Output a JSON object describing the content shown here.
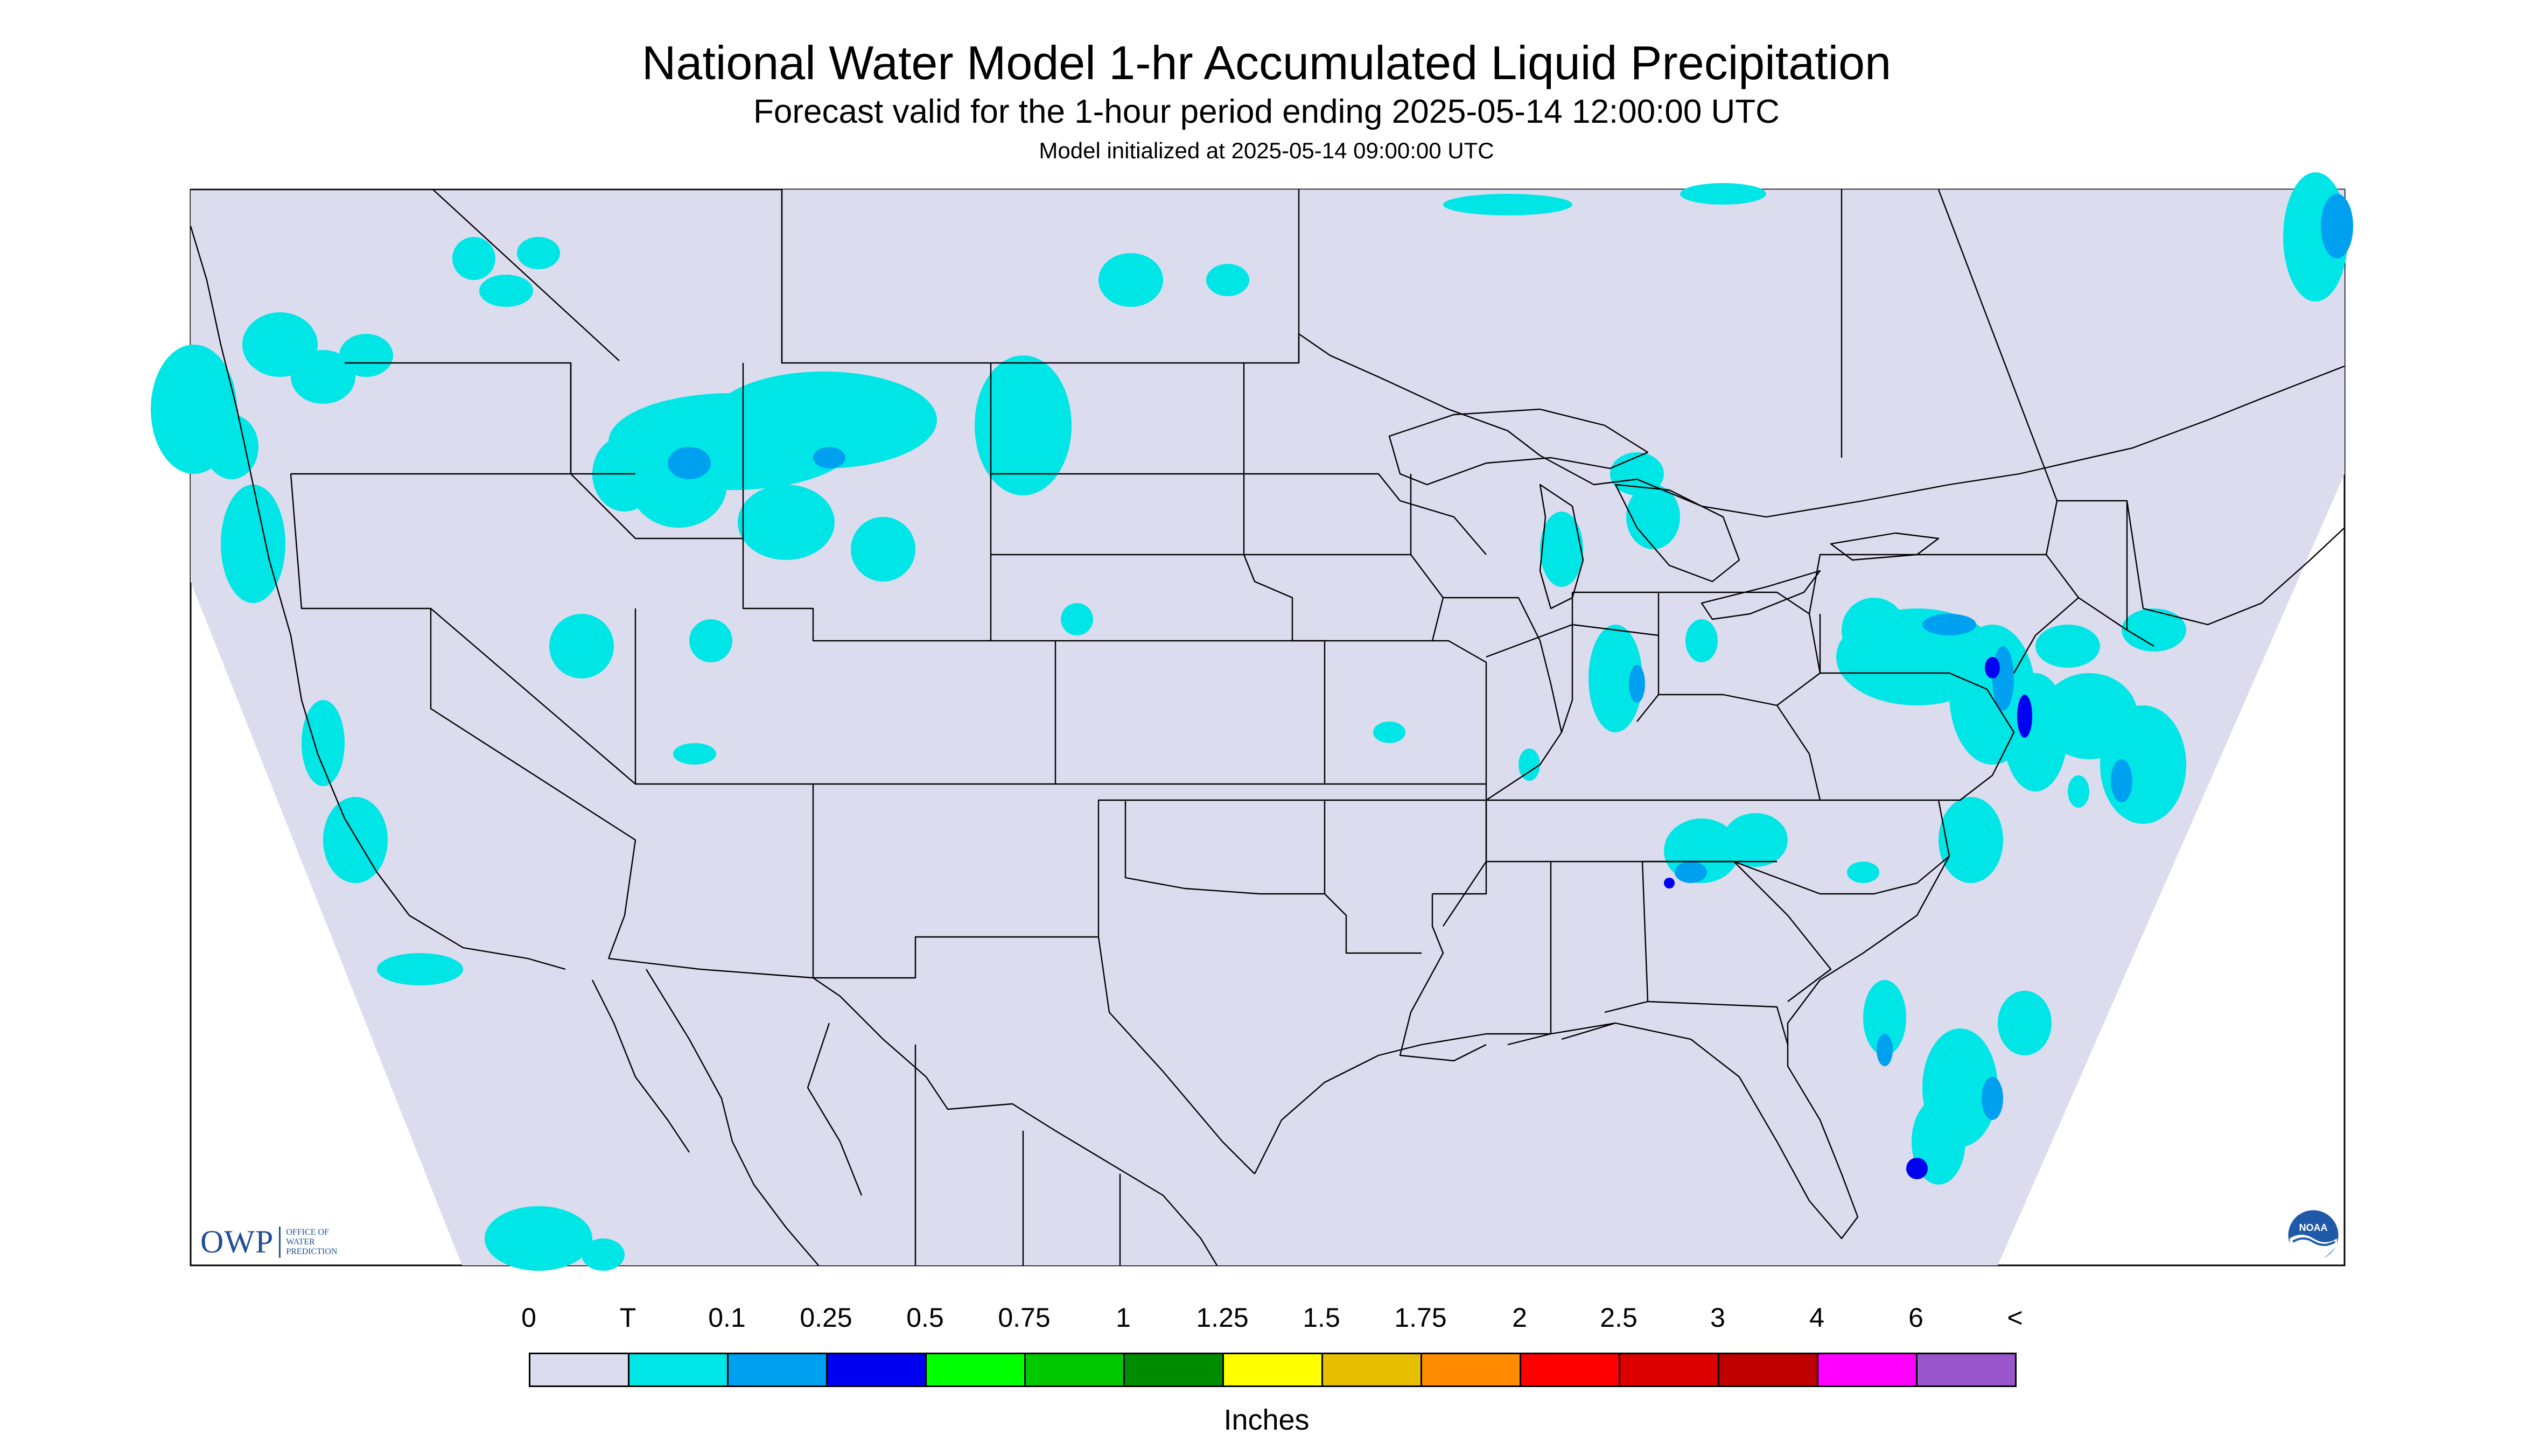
{
  "header": {
    "title": "National Water Model 1-hr Accumulated Liquid Precipitation",
    "subtitle": "Forecast valid for the 1-hour period ending 2025-05-14 12:00:00 UTC",
    "init": "Model initialized at 2025-05-14 09:00:00 UTC"
  },
  "legend": {
    "labels": [
      "0",
      "T",
      "0.1",
      "0.25",
      "0.5",
      "0.75",
      "1",
      "1.25",
      "1.5",
      "1.75",
      "2",
      "2.5",
      "3",
      "4",
      "6",
      "<"
    ],
    "colors": [
      "#dcdcef",
      "#00e5e5",
      "#00a0f0",
      "#0000f0",
      "#00ff00",
      "#00c800",
      "#008c00",
      "#ffff00",
      "#e6be00",
      "#ff8c00",
      "#ff0000",
      "#dc0000",
      "#c00000",
      "#ff00ff",
      "#9955cc"
    ],
    "units": "Inches"
  },
  "map": {
    "background_color": "#dcdcef",
    "trace_color": "#00e5e5",
    "light_color": "#00a0f0",
    "moderate_color": "#0000f0",
    "boundary_color": "#000000"
  },
  "logos": {
    "owp_mark": "OWP",
    "owp_text": [
      "OFFICE OF",
      "WATER",
      "PREDICTION"
    ],
    "noaa": "NOAA"
  }
}
